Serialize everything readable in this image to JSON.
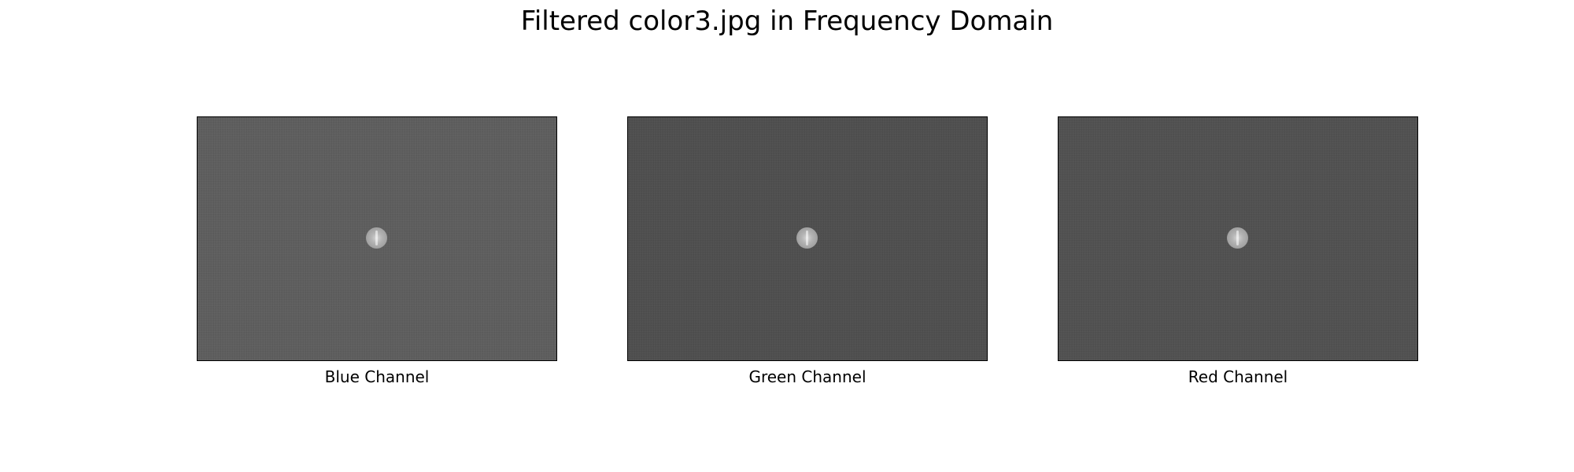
{
  "figure": {
    "title": "Filtered color3.jpg in Frequency Domain"
  },
  "panels": [
    {
      "caption": "Blue Channel",
      "background_color": "#5c5c5c"
    },
    {
      "caption": "Green Channel",
      "background_color": "#4d4d4d"
    },
    {
      "caption": "Red Channel",
      "background_color": "#4f4f4f"
    }
  ]
}
